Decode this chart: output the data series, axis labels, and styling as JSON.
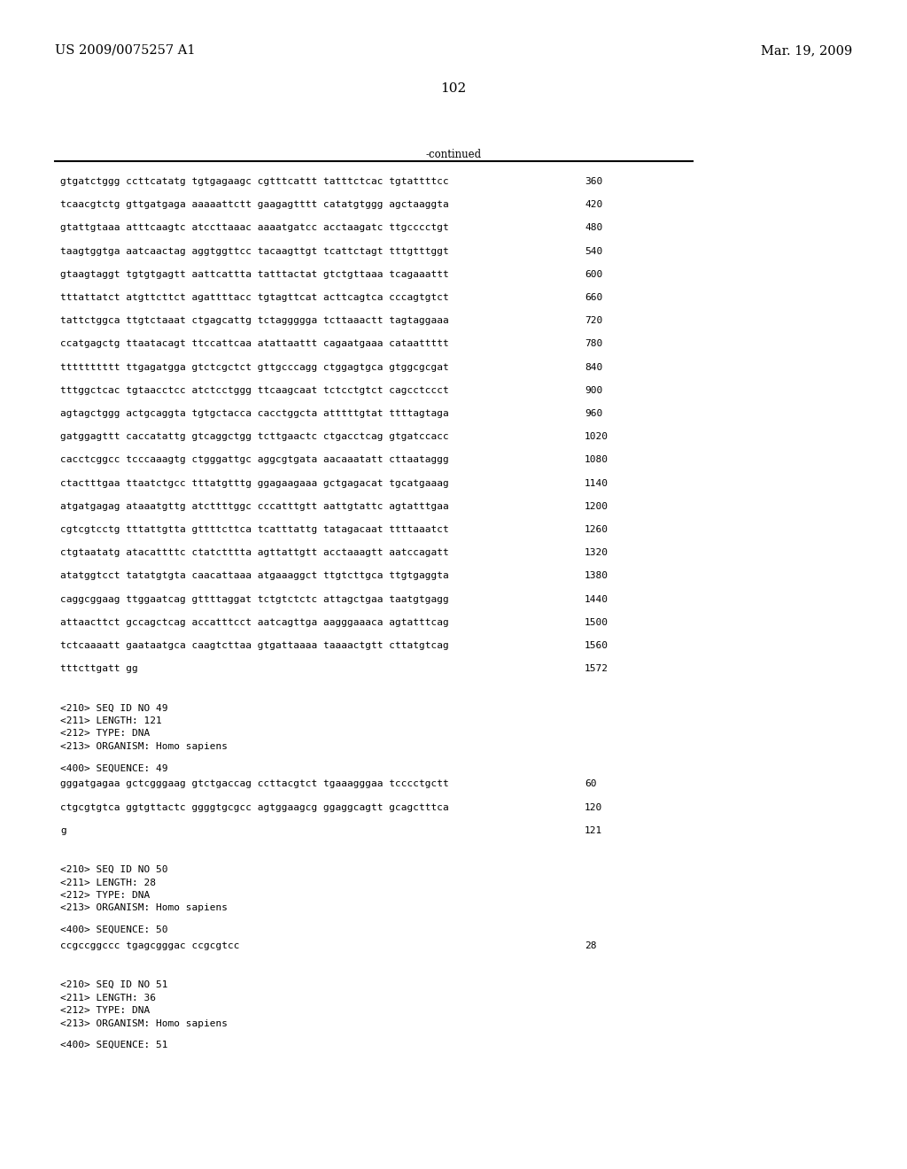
{
  "header_left": "US 2009/0075257 A1",
  "header_right": "Mar. 19, 2009",
  "page_number": "102",
  "continued_label": "-continued",
  "background_color": "#ffffff",
  "font_size_header": 10.5,
  "font_size_body": 8.0,
  "font_size_page": 11,
  "sequence_lines": [
    [
      "gtgatctggg ccttcatatg tgtgagaagc cgtttcattt tatttctcac tgtattttcc",
      "360"
    ],
    [
      "tcaacgtctg gttgatgaga aaaaattctt gaagagtttt catatgtggg agctaaggta",
      "420"
    ],
    [
      "gtattgtaaa atttcaagtc atccttaaac aaaatgatcc acctaagatc ttgcccctgt",
      "480"
    ],
    [
      "taagtggtga aatcaactag aggtggttcc tacaagttgt tcattctagt tttgtttggt",
      "540"
    ],
    [
      "gtaagtaggt tgtgtgagtt aattcattta tatttactat gtctgttaaa tcagaaattt",
      "600"
    ],
    [
      "tttattatct atgttcttct agattttacc tgtagttcat acttcagtca cccagtgtct",
      "660"
    ],
    [
      "tattctggca ttgtctaaat ctgagcattg tctaggggga tcttaaactt tagtaggaaa",
      "720"
    ],
    [
      "ccatgagctg ttaatacagt ttccattcaa atattaattt cagaatgaaa cataattttt",
      "780"
    ],
    [
      "tttttttttt ttgagatgga gtctcgctct gttgcccagg ctggagtgca gtggcgcgat",
      "840"
    ],
    [
      "tttggctcac tgtaacctcc atctcctggg ttcaagcaat tctcctgtct cagcctccct",
      "900"
    ],
    [
      "agtagctggg actgcaggta tgtgctacca cacctggcta atttttgtat ttttagtaga",
      "960"
    ],
    [
      "gatggagttt caccatattg gtcaggctgg tcttgaactc ctgacctcag gtgatccacc",
      "1020"
    ],
    [
      "cacctcggcc tcccaaagtg ctgggattgc aggcgtgata aacaaatatt cttaataggg",
      "1080"
    ],
    [
      "ctactttgaa ttaatctgcc tttatgtttg ggagaagaaa gctgagacat tgcatgaaag",
      "1140"
    ],
    [
      "atgatgagag ataaatgttg atcttttggc cccatttgtt aattgtattc agtatttgaa",
      "1200"
    ],
    [
      "cgtcgtcctg tttattgtta gttttcttca tcatttattg tatagacaat ttttaaatct",
      "1260"
    ],
    [
      "ctgtaatatg atacattttc ctatctttta agttattgtt acctaaagtt aatccagatt",
      "1320"
    ],
    [
      "atatggtcct tatatgtgta caacattaaa atgaaaggct ttgtcttgca ttgtgaggta",
      "1380"
    ],
    [
      "caggcggaag ttggaatcag gttttaggat tctgtctctc attagctgaa taatgtgagg",
      "1440"
    ],
    [
      "attaacttct gccagctcag accatttcct aatcagttga aagggaaaca agtatttcag",
      "1500"
    ],
    [
      "tctcaaaatt gaataatgca caagtcttaa gtgattaaaa taaaactgtt cttatgtcag",
      "1560"
    ],
    [
      "tttcttgatt gg",
      "1572"
    ]
  ],
  "metadata_49": [
    "<210> SEQ ID NO 49",
    "<211> LENGTH: 121",
    "<212> TYPE: DNA",
    "<213> ORGANISM: Homo sapiens"
  ],
  "sequence_label_49": "<400> SEQUENCE: 49",
  "sequence_49_lines": [
    [
      "gggatgagaa gctcgggaag gtctgaccag ccttacgtct tgaaagggaa tcccctgctt",
      "60"
    ],
    [
      "ctgcgtgtca ggtgttactc ggggtgcgcc agtggaagcg ggaggcagtt gcagctttca",
      "120"
    ],
    [
      "g",
      "121"
    ]
  ],
  "metadata_50": [
    "<210> SEQ ID NO 50",
    "<211> LENGTH: 28",
    "<212> TYPE: DNA",
    "<213> ORGANISM: Homo sapiens"
  ],
  "sequence_label_50": "<400> SEQUENCE: 50",
  "sequence_50_lines": [
    [
      "ccgccggccc tgagcgggac ccgcgtcc",
      "28"
    ]
  ],
  "metadata_51": [
    "<210> SEQ ID NO 51",
    "<211> LENGTH: 36",
    "<212> TYPE: DNA",
    "<213> ORGANISM: Homo sapiens"
  ],
  "sequence_label_51": "<400> SEQUENCE: 51"
}
